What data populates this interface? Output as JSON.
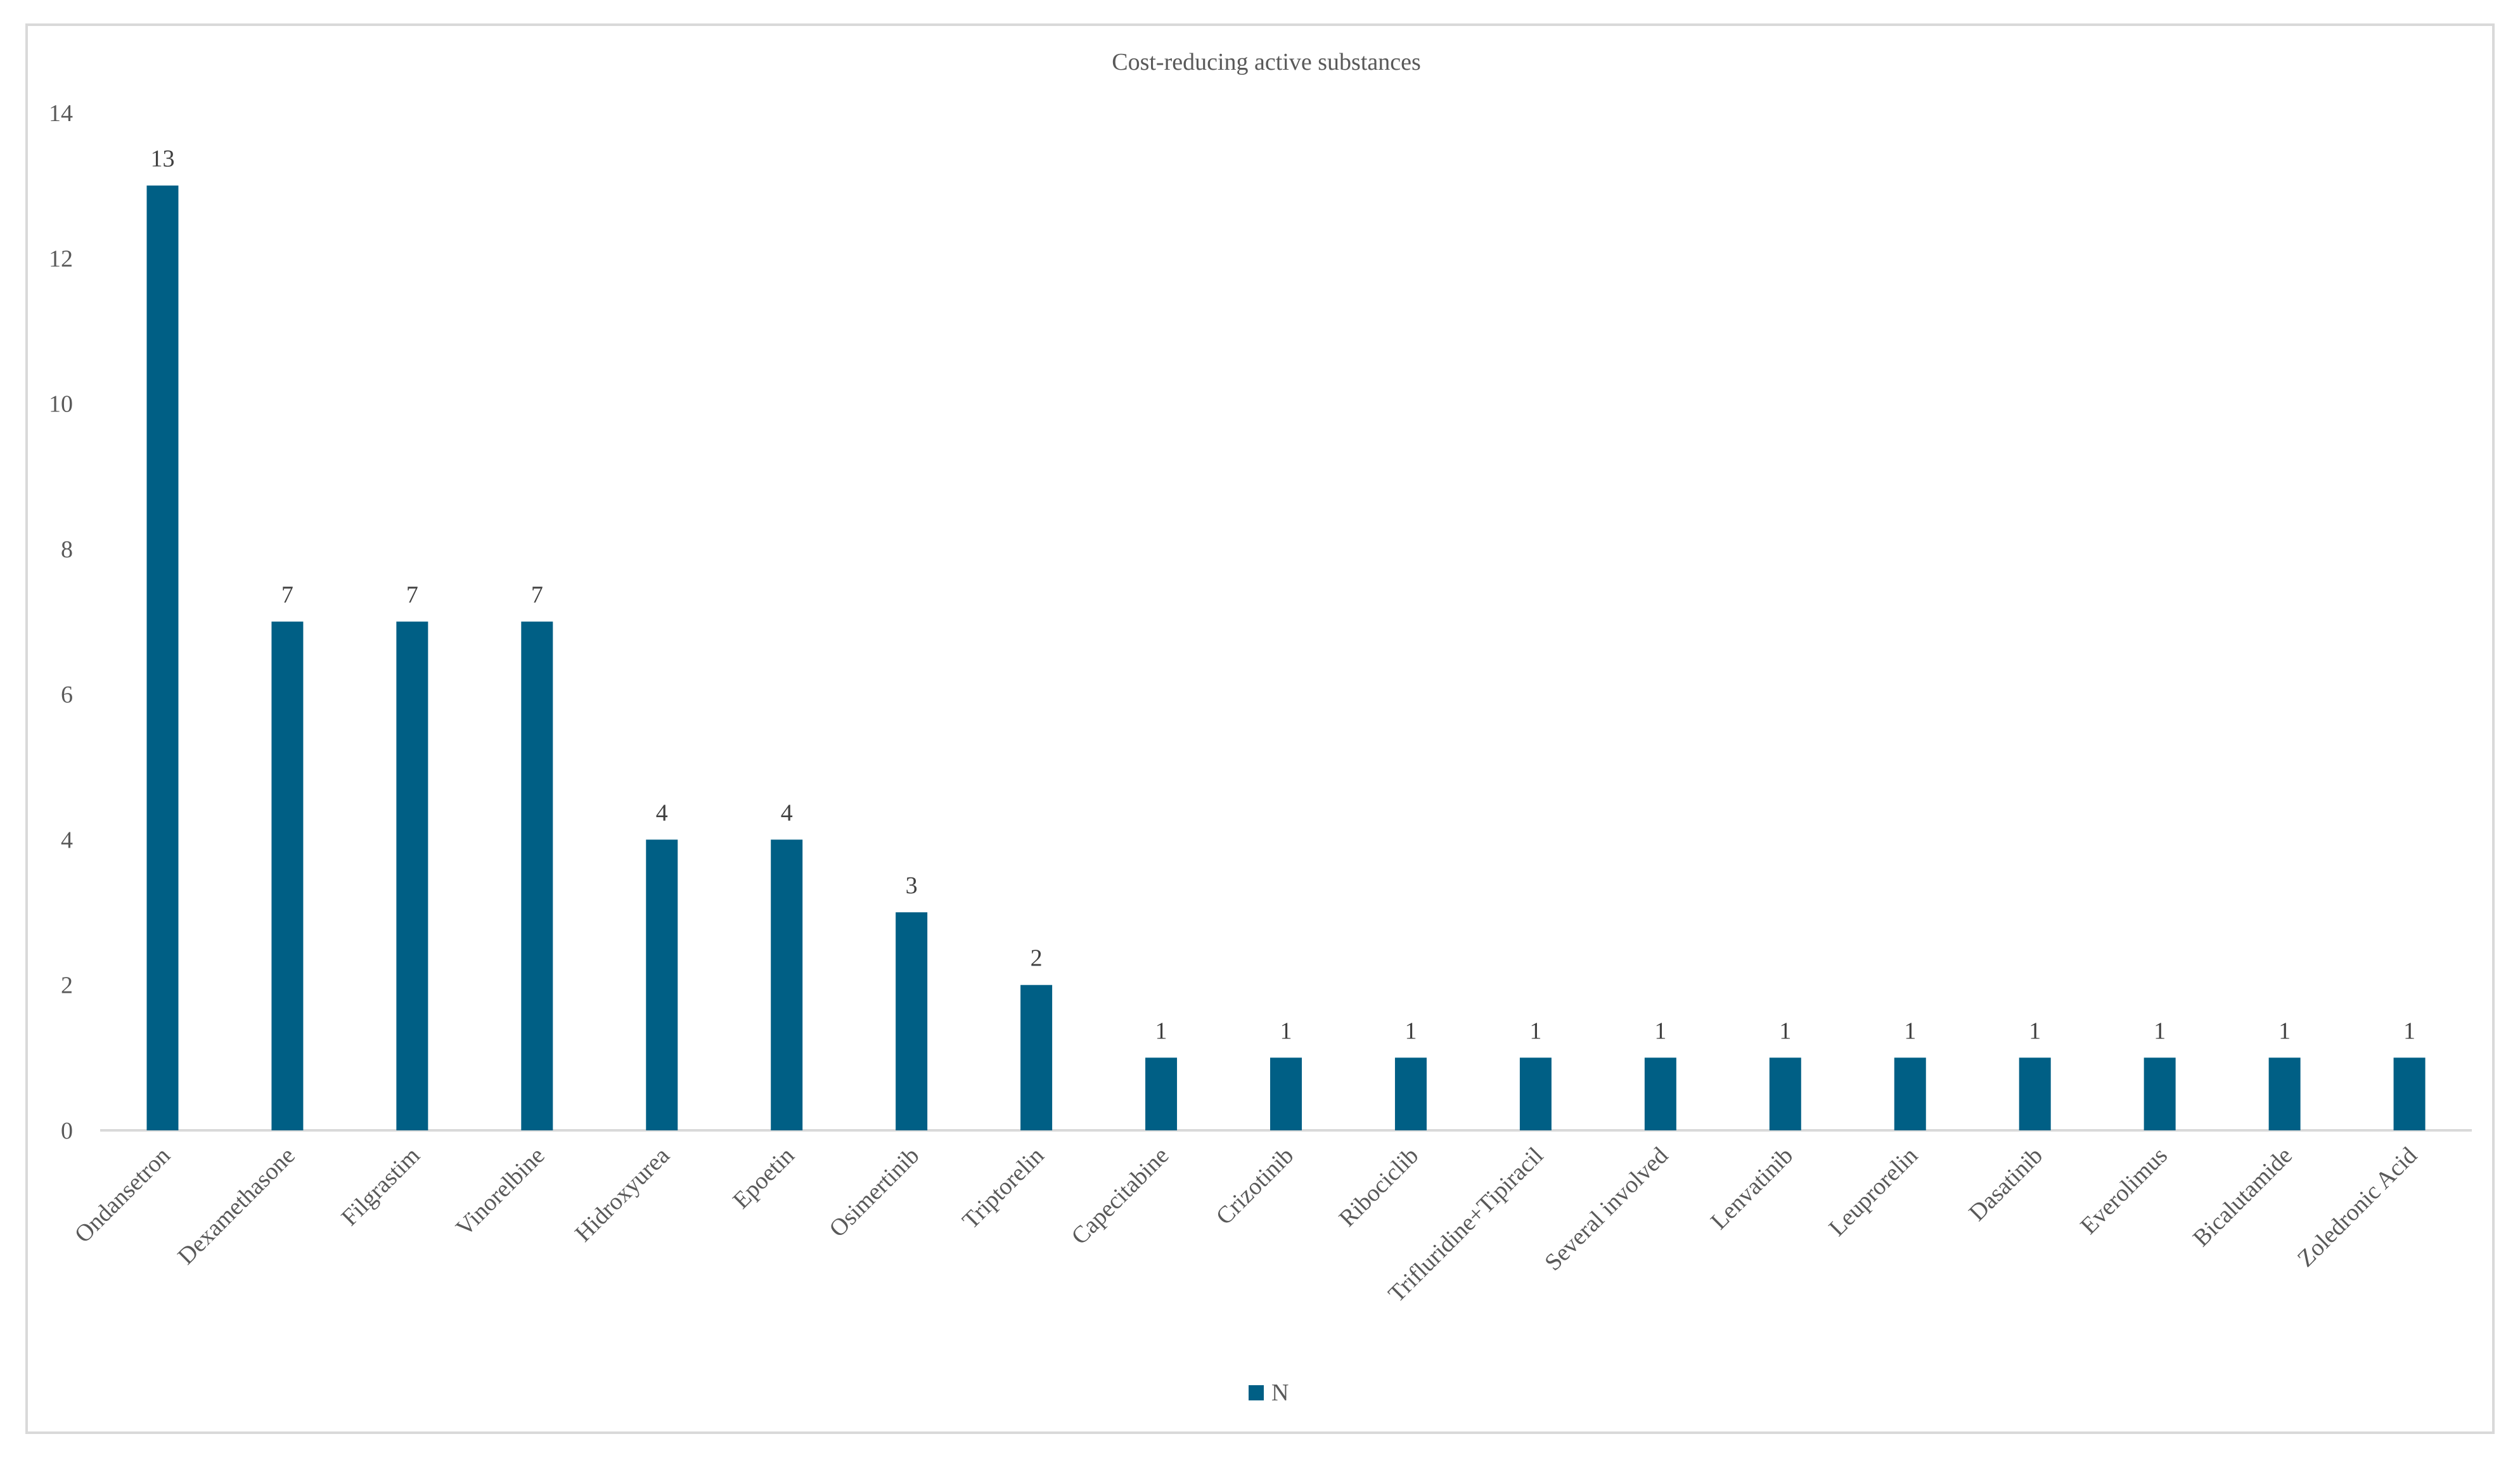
{
  "chart_data": {
    "type": "bar",
    "title": "Cost-reducing active substances",
    "xlabel": "",
    "ylabel": "",
    "categories": [
      "Ondansetron",
      "Dexamethasone",
      "Filgrastim",
      "Vinorelbine",
      "Hidroxyurea",
      "Epoetin",
      "Osimertinib",
      "Triptorelin",
      "Capecitabine",
      "Crizotinib",
      "Ribociclib",
      "Trifluridine+Tipiracil",
      "Several involved",
      "Lenvatinib",
      "Leuprorelin",
      "Dasatinib",
      "Everolimus",
      "Bicalutamide",
      "Zoledronic Acid"
    ],
    "series": [
      {
        "name": "N",
        "values": [
          13,
          7,
          7,
          7,
          4,
          4,
          3,
          2,
          1,
          1,
          1,
          1,
          1,
          1,
          1,
          1,
          1,
          1,
          1
        ]
      }
    ],
    "data_labels": [
      "13",
      "7",
      "7",
      "7",
      "4",
      "4",
      "3",
      "2",
      "1",
      "1",
      "1",
      "1",
      "1",
      "1",
      "1",
      "1",
      "1",
      "1",
      "1"
    ],
    "ylim": [
      0,
      14
    ],
    "yticks": [
      "0",
      "2",
      "4",
      "6",
      "8",
      "10",
      "12",
      "14"
    ],
    "grid": false,
    "legend_position": "bottom",
    "bar_color": "#005f85"
  }
}
